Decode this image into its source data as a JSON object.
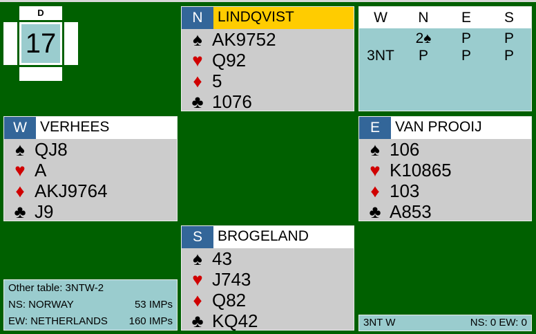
{
  "board": {
    "number": "17",
    "dealer": "D"
  },
  "north": {
    "seat": "N",
    "name": "LINDQVIST",
    "spades": "AK9752",
    "hearts": "Q92",
    "diamonds": "5",
    "clubs": "1076"
  },
  "west": {
    "seat": "W",
    "name": "VERHEES",
    "spades": "QJ8",
    "hearts": "A",
    "diamonds": "AKJ9764",
    "clubs": "J9"
  },
  "east": {
    "seat": "E",
    "name": "VAN PROOIJ",
    "spades": "106",
    "hearts": "K10865",
    "diamonds": "103",
    "clubs": "A853"
  },
  "south": {
    "seat": "S",
    "name": "BROGELAND",
    "spades": "43",
    "hearts": "J743",
    "diamonds": "Q82",
    "clubs": "KQ42"
  },
  "suits": {
    "spade": "♠",
    "heart": "♥",
    "diamond": "♦",
    "club": "♣"
  },
  "colors": {
    "table": "#006000",
    "seat": "#336699",
    "declarer_highlight": "#ffcc00",
    "panel": "#9accce",
    "hand": "#cccccc",
    "red_suit": "#d00000"
  },
  "auction": {
    "headers": [
      "W",
      "N",
      "E",
      "S"
    ],
    "rows": [
      [
        "",
        "2♠",
        "P",
        "P"
      ],
      [
        "3NT",
        "P",
        "P",
        "P"
      ]
    ]
  },
  "info": {
    "other_table": "Other table: 3NTW-2",
    "ns_team": "NS: NORWAY",
    "ns_imps": "53 IMPs",
    "ew_team": "EW: NETHERLANDS",
    "ew_imps": "160 IMPs"
  },
  "result": {
    "contract": "3NT W",
    "score": "NS: 0 EW: 0"
  }
}
